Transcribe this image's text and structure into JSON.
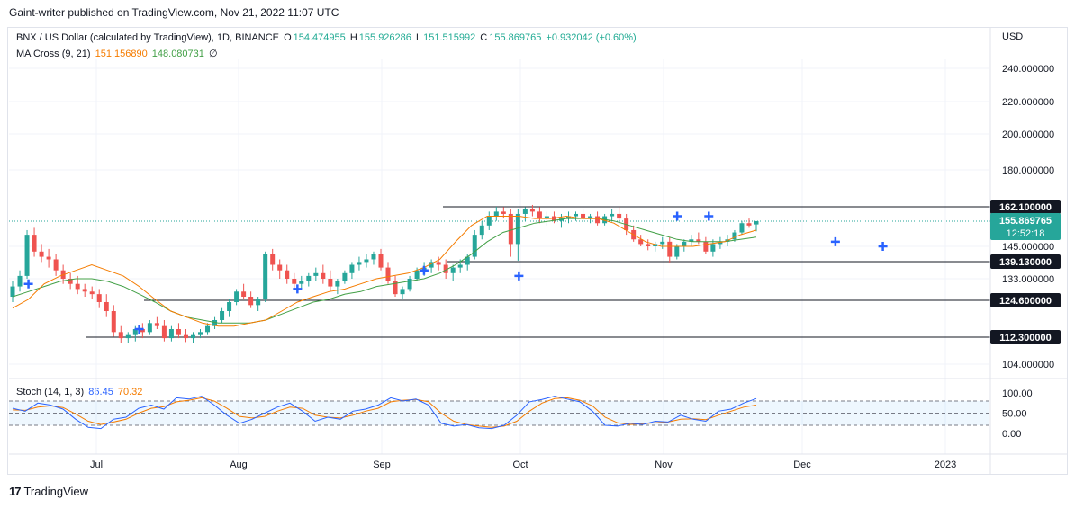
{
  "header": {
    "credit": "Gaint-writer published on TradingView.com, Nov 21, 2022 11:07 UTC"
  },
  "legend": {
    "symbol": "BNX / US Dollar (calculated by TradingView), 1D, BINANCE",
    "o_label": "O",
    "o": "154.474955",
    "h_label": "H",
    "h": "155.926286",
    "l_label": "L",
    "l": "151.515992",
    "c_label": "C",
    "c": "155.869765",
    "change": "+0.932042 (+0.60%)",
    "ma_label": "MA Cross (9, 21)",
    "ma_fast": "151.156890",
    "ma_slow": "148.080731",
    "ma_extra": "∅"
  },
  "stoch_legend": {
    "label": "Stoch (14, 1, 3)",
    "k": "86.45",
    "d": "70.32"
  },
  "price_axis": {
    "currency": "USD",
    "ticks": [
      "240.000000",
      "220.000000",
      "200.000000",
      "180.000000",
      "145.000000",
      "133.000000",
      "104.000000"
    ],
    "tick_values": [
      240,
      220,
      200,
      180,
      145,
      133,
      104
    ]
  },
  "stoch_axis": {
    "ticks": [
      "100.00",
      "50.00",
      "0.00"
    ],
    "tick_values": [
      100,
      50,
      0
    ]
  },
  "time_axis": [
    "Jul",
    "Aug",
    "Sep",
    "Oct",
    "Nov",
    "Dec",
    "2023"
  ],
  "price_labels": {
    "current_price": "155.869765",
    "countdown": "12:52:18",
    "levels": [
      "162.100000",
      "139.130000",
      "124.600000",
      "112.300000"
    ],
    "level_values": [
      162.1,
      139.13,
      124.6,
      112.3
    ]
  },
  "brand": {
    "name": "TradingView"
  },
  "colors": {
    "up": "#26a69a",
    "down": "#ef5350",
    "ma_fast": "#f57c00",
    "ma_slow": "#43a047",
    "stoch_k": "#2962ff",
    "stoch_d": "#f57c00",
    "accent": "#26a69a"
  },
  "chart_data": {
    "type": "candlestick",
    "x_range": [
      "2022-06-13",
      "2023-01-04"
    ],
    "current_date": "2022-11-21",
    "candles_ohlc": [
      [
        126,
        132,
        124,
        130
      ],
      [
        130,
        136,
        128,
        134
      ],
      [
        134,
        152,
        133,
        150
      ],
      [
        150,
        153,
        141,
        143
      ],
      [
        143,
        146,
        139,
        141
      ],
      [
        141,
        144,
        137,
        140
      ],
      [
        140,
        142,
        134,
        136
      ],
      [
        136,
        138,
        131,
        133
      ],
      [
        133,
        135,
        129,
        131
      ],
      [
        131,
        134,
        127,
        129
      ],
      [
        129,
        131,
        126,
        128
      ],
      [
        128,
        130,
        125,
        127
      ],
      [
        127,
        129,
        122,
        124
      ],
      [
        124,
        127,
        119,
        121
      ],
      [
        121,
        123,
        112.5,
        114
      ],
      [
        114,
        116,
        110.5,
        112
      ],
      [
        112,
        114,
        110.5,
        113
      ],
      [
        113,
        116,
        111,
        115
      ],
      [
        115,
        117,
        112,
        114
      ],
      [
        114,
        118,
        113,
        117
      ],
      [
        117,
        119,
        115,
        116
      ],
      [
        116,
        118,
        111,
        112
      ],
      [
        112,
        116,
        111,
        115
      ],
      [
        115,
        117,
        112,
        113
      ],
      [
        113,
        115,
        110.8,
        112
      ],
      [
        112,
        114,
        110.5,
        113
      ],
      [
        113,
        115,
        112,
        114
      ],
      [
        114,
        117,
        113,
        116
      ],
      [
        116,
        119,
        115,
        118
      ],
      [
        118,
        122,
        117,
        121
      ],
      [
        121,
        125,
        119,
        124
      ],
      [
        124,
        129,
        123,
        128
      ],
      [
        128,
        131,
        125,
        126
      ],
      [
        126,
        128,
        122,
        123
      ],
      [
        123,
        126,
        121,
        125
      ],
      [
        125,
        143,
        124,
        142
      ],
      [
        142,
        144,
        136,
        138
      ],
      [
        138,
        140,
        133,
        136
      ],
      [
        136,
        138,
        131,
        133
      ],
      [
        133,
        135,
        129,
        131
      ],
      [
        131,
        134,
        129,
        132
      ],
      [
        132,
        135,
        130,
        134
      ],
      [
        134,
        137,
        132,
        135
      ],
      [
        135,
        138,
        131,
        133
      ],
      [
        133,
        136,
        128,
        130
      ],
      [
        130,
        133,
        127,
        132
      ],
      [
        132,
        136,
        131,
        135
      ],
      [
        135,
        139,
        133,
        138
      ],
      [
        138,
        141,
        136,
        139
      ],
      [
        139,
        142,
        137,
        140
      ],
      [
        140,
        143,
        138,
        142
      ],
      [
        142,
        144,
        136,
        137
      ],
      [
        137,
        139,
        131,
        132
      ],
      [
        132,
        134,
        126,
        127
      ],
      [
        127,
        130,
        125,
        129
      ],
      [
        129,
        134,
        128,
        133
      ],
      [
        133,
        137,
        132,
        136
      ],
      [
        136,
        139,
        134,
        137
      ],
      [
        137,
        140,
        135,
        139
      ],
      [
        139,
        141,
        136,
        138
      ],
      [
        138,
        140,
        133,
        135
      ],
      [
        135,
        138,
        132,
        137
      ],
      [
        137,
        140,
        135,
        138
      ],
      [
        138,
        142,
        136,
        141
      ],
      [
        141,
        152,
        140,
        150
      ],
      [
        150,
        156,
        148,
        154
      ],
      [
        154,
        160,
        152,
        158
      ],
      [
        158,
        162.1,
        156,
        160
      ],
      [
        160,
        162,
        157,
        159
      ],
      [
        159,
        161,
        141,
        146
      ],
      [
        146,
        161,
        139.5,
        159
      ],
      [
        159,
        162,
        156,
        161
      ],
      [
        161,
        163,
        158,
        160
      ],
      [
        160,
        162,
        155,
        157
      ],
      [
        157,
        160,
        154,
        158
      ],
      [
        158,
        160,
        155,
        156
      ],
      [
        156,
        159,
        153,
        157
      ],
      [
        157,
        160,
        155,
        158
      ],
      [
        158,
        160,
        156,
        159
      ],
      [
        159,
        161,
        156,
        157
      ],
      [
        157,
        159,
        155,
        158
      ],
      [
        158,
        160,
        154,
        155
      ],
      [
        155,
        159,
        154,
        158
      ],
      [
        158,
        161,
        156,
        159
      ],
      [
        159,
        162,
        156,
        157
      ],
      [
        157,
        159,
        150,
        152
      ],
      [
        152,
        154,
        147,
        148
      ],
      [
        148,
        150,
        145,
        146
      ],
      [
        146,
        148,
        143.5,
        145
      ],
      [
        145,
        147,
        143,
        146
      ],
      [
        146,
        149,
        144,
        147
      ],
      [
        147,
        149,
        138.5,
        141
      ],
      [
        141,
        146,
        140,
        145
      ],
      [
        145,
        148,
        143,
        147
      ],
      [
        147,
        150,
        145,
        148
      ],
      [
        148,
        151,
        146,
        147
      ],
      [
        147,
        149,
        142,
        143
      ],
      [
        143,
        148,
        141,
        146
      ],
      [
        146,
        149,
        144,
        147
      ],
      [
        147,
        150,
        145,
        148
      ],
      [
        148,
        152,
        147,
        151
      ],
      [
        151,
        156,
        150,
        155
      ],
      [
        155,
        157,
        153,
        154
      ],
      [
        154.47,
        155.93,
        151.52,
        155.87
      ]
    ],
    "ma_fast_values": [
      122,
      125,
      131,
      134,
      136,
      138,
      136,
      134,
      130,
      125,
      121,
      119,
      117,
      116,
      116,
      117,
      118,
      121,
      124,
      126,
      128,
      129,
      131,
      133,
      134,
      135,
      137,
      140,
      147,
      154,
      158,
      158,
      158,
      157,
      157,
      158,
      157,
      157,
      155,
      151,
      147,
      145,
      145,
      145,
      146,
      147,
      150,
      152
    ],
    "ma_slow_values": [
      126,
      128,
      130,
      132,
      133,
      133,
      132,
      130,
      127,
      124,
      121,
      119,
      118,
      117,
      117,
      117,
      118,
      120,
      122,
      124,
      125,
      127,
      128,
      130,
      131,
      132,
      133,
      135,
      138,
      142,
      147,
      151,
      153,
      155,
      156,
      157,
      157,
      157,
      156,
      154,
      152,
      150,
      148,
      147,
      147,
      147,
      148,
      149
    ],
    "crossover_markers": [
      [
        1,
        131
      ],
      [
        8,
        115
      ],
      [
        18,
        129
      ],
      [
        26,
        136
      ],
      [
        32,
        134
      ],
      [
        42,
        158
      ],
      [
        44,
        158
      ],
      [
        52,
        147
      ],
      [
        55,
        145
      ]
    ],
    "stoch_k_values": [
      62,
      55,
      75,
      70,
      60,
      35,
      15,
      12,
      35,
      40,
      62,
      70,
      60,
      88,
      85,
      92,
      70,
      45,
      25,
      35,
      50,
      65,
      75,
      55,
      30,
      40,
      35,
      55,
      60,
      70,
      88,
      80,
      85,
      70,
      25,
      18,
      22,
      14,
      12,
      20,
      45,
      78,
      84,
      92,
      85,
      78,
      55,
      20,
      18,
      25,
      22,
      30,
      28,
      45,
      35,
      30,
      55,
      60,
      75,
      86
    ],
    "stoch_d_values": [
      58,
      57,
      65,
      68,
      64,
      48,
      30,
      22,
      28,
      35,
      50,
      62,
      66,
      78,
      82,
      88,
      80,
      62,
      42,
      38,
      42,
      55,
      65,
      62,
      45,
      40,
      38,
      45,
      55,
      62,
      78,
      82,
      84,
      78,
      50,
      30,
      22,
      18,
      15,
      18,
      30,
      55,
      75,
      86,
      88,
      82,
      68,
      40,
      26,
      22,
      24,
      26,
      28,
      35,
      36,
      34,
      45,
      55,
      65,
      70
    ],
    "stoch_bands": [
      80,
      50,
      20
    ]
  }
}
